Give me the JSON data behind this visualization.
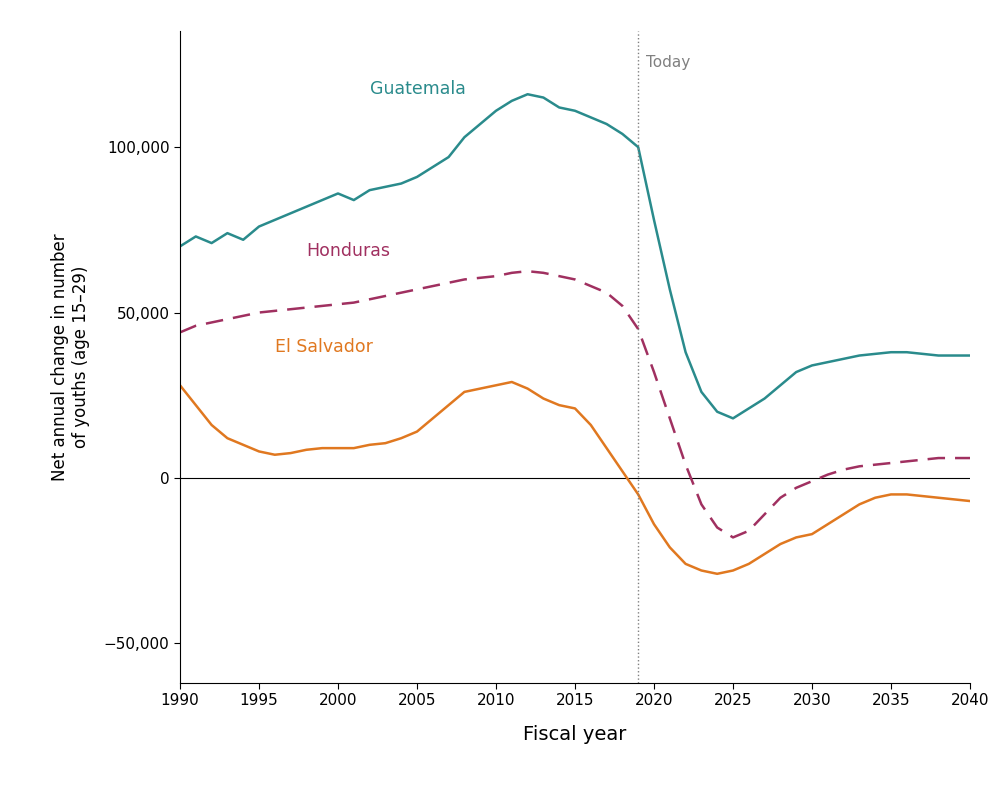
{
  "xlabel": "Fiscal year",
  "ylabel": "Net annual change in number\nof youths (age 15–29)",
  "today_x": 2019,
  "today_label": "Today",
  "xlim": [
    1990,
    2040
  ],
  "ylim": [
    -62000,
    135000
  ],
  "yticks": [
    -50000,
    0,
    50000,
    100000
  ],
  "xticks": [
    1990,
    1995,
    2000,
    2005,
    2010,
    2015,
    2020,
    2025,
    2030,
    2035,
    2040
  ],
  "guatemala_color": "#2A8B8C",
  "honduras_color": "#A03060",
  "elsalvador_color": "#E07820",
  "background_color": "#FFFFFF",
  "guatemala": {
    "label": "Guatemala",
    "x": [
      1990,
      1991,
      1992,
      1993,
      1994,
      1995,
      1996,
      1997,
      1998,
      1999,
      2000,
      2001,
      2002,
      2003,
      2004,
      2005,
      2006,
      2007,
      2008,
      2009,
      2010,
      2011,
      2012,
      2013,
      2014,
      2015,
      2016,
      2017,
      2018,
      2019,
      2020,
      2021,
      2022,
      2023,
      2024,
      2025,
      2026,
      2027,
      2028,
      2029,
      2030,
      2031,
      2032,
      2033,
      2034,
      2035,
      2036,
      2037,
      2038,
      2039,
      2040
    ],
    "y": [
      70000,
      73000,
      71000,
      74000,
      72000,
      76000,
      78000,
      80000,
      82000,
      84000,
      86000,
      84000,
      87000,
      88000,
      89000,
      91000,
      94000,
      97000,
      103000,
      107000,
      111000,
      114000,
      116000,
      115000,
      112000,
      111000,
      109000,
      107000,
      104000,
      100000,
      78000,
      57000,
      38000,
      26000,
      20000,
      18000,
      21000,
      24000,
      28000,
      32000,
      34000,
      35000,
      36000,
      37000,
      37500,
      38000,
      38000,
      37500,
      37000,
      37000,
      37000
    ]
  },
  "honduras": {
    "label": "Honduras",
    "x": [
      1990,
      1991,
      1992,
      1993,
      1994,
      1995,
      1996,
      1997,
      1998,
      1999,
      2000,
      2001,
      2002,
      2003,
      2004,
      2005,
      2006,
      2007,
      2008,
      2009,
      2010,
      2011,
      2012,
      2013,
      2014,
      2015,
      2016,
      2017,
      2018,
      2019,
      2020,
      2021,
      2022,
      2023,
      2024,
      2025,
      2026,
      2027,
      2028,
      2029,
      2030,
      2031,
      2032,
      2033,
      2034,
      2035,
      2036,
      2037,
      2038,
      2039,
      2040
    ],
    "y": [
      44000,
      46000,
      47000,
      48000,
      49000,
      50000,
      50500,
      51000,
      51500,
      52000,
      52500,
      53000,
      54000,
      55000,
      56000,
      57000,
      58000,
      59000,
      60000,
      60500,
      61000,
      62000,
      62500,
      62000,
      61000,
      60000,
      58000,
      56000,
      52000,
      45000,
      32000,
      18000,
      4000,
      -8000,
      -15000,
      -18000,
      -16000,
      -11000,
      -6000,
      -3000,
      -1000,
      1000,
      2500,
      3500,
      4000,
      4500,
      5000,
      5500,
      6000,
      6000,
      6000
    ]
  },
  "elsalvador": {
    "label": "El Salvador",
    "x": [
      1990,
      1991,
      1992,
      1993,
      1994,
      1995,
      1996,
      1997,
      1998,
      1999,
      2000,
      2001,
      2002,
      2003,
      2004,
      2005,
      2006,
      2007,
      2008,
      2009,
      2010,
      2011,
      2012,
      2013,
      2014,
      2015,
      2016,
      2017,
      2018,
      2019,
      2020,
      2021,
      2022,
      2023,
      2024,
      2025,
      2026,
      2027,
      2028,
      2029,
      2030,
      2031,
      2032,
      2033,
      2034,
      2035,
      2036,
      2037,
      2038,
      2039,
      2040
    ],
    "y": [
      28000,
      22000,
      16000,
      12000,
      10000,
      8000,
      7000,
      7500,
      8500,
      9000,
      9000,
      9000,
      10000,
      10500,
      12000,
      14000,
      18000,
      22000,
      26000,
      27000,
      28000,
      29000,
      27000,
      24000,
      22000,
      21000,
      16000,
      9000,
      2000,
      -5000,
      -14000,
      -21000,
      -26000,
      -28000,
      -29000,
      -28000,
      -26000,
      -23000,
      -20000,
      -18000,
      -17000,
      -14000,
      -11000,
      -8000,
      -6000,
      -5000,
      -5000,
      -5500,
      -6000,
      -6500,
      -7000
    ]
  },
  "label_positions": {
    "guatemala": [
      2002,
      116000
    ],
    "honduras": [
      1998,
      67000
    ],
    "elsalvador": [
      1996,
      38000
    ]
  }
}
